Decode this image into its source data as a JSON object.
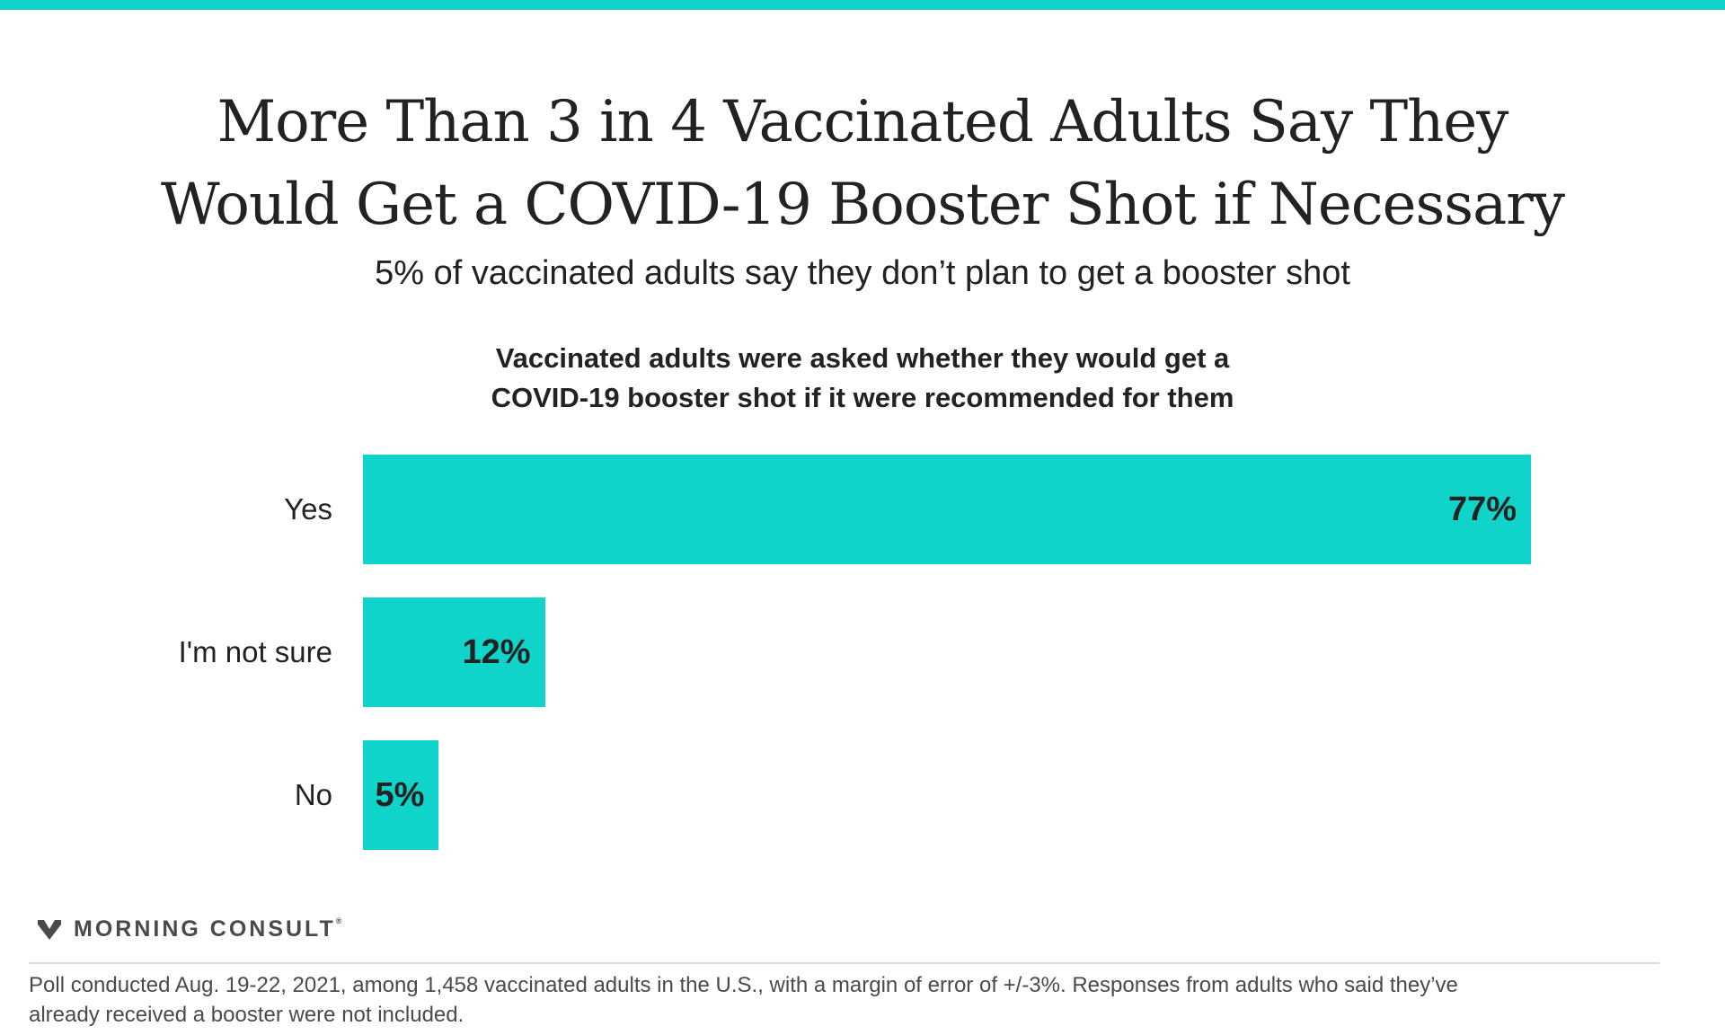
{
  "header": {
    "title_line1": "More Than 3 in 4 Vaccinated Adults Say They",
    "title_line2": "Would Get a COVID-19 Booster Shot if Necessary",
    "subtitle": "5% of vaccinated adults say they don’t plan to get a booster shot",
    "question_line1": "Vaccinated adults were asked whether they would get a",
    "question_line2": "COVID-19 booster shot if it were recommended for them"
  },
  "colors": {
    "accent": "#10d4c9",
    "text": "#222222",
    "muted": "#4a4a4a"
  },
  "chart_data": {
    "type": "bar",
    "orientation": "horizontal",
    "categories": [
      "Yes",
      "I'm not sure",
      "No"
    ],
    "values": [
      77,
      12,
      5
    ],
    "value_labels": [
      "77%",
      "12%",
      "5%"
    ],
    "title": "Vaccinated adults were asked whether they would get a COVID-19 booster shot if it were recommended for them",
    "xlim": [
      0,
      77
    ],
    "grid": false,
    "legend": "none"
  },
  "branding": {
    "logo_icon": "morning-consult-m-icon",
    "logo_text": "MORNING CONSULT",
    "logo_mark": "®"
  },
  "footnote": {
    "line1": "Poll conducted Aug. 19-22, 2021, among 1,458 vaccinated adults in the U.S., with a margin of error of +/-3%. Responses from adults who said they’ve",
    "line2": "already received a booster were not included."
  }
}
